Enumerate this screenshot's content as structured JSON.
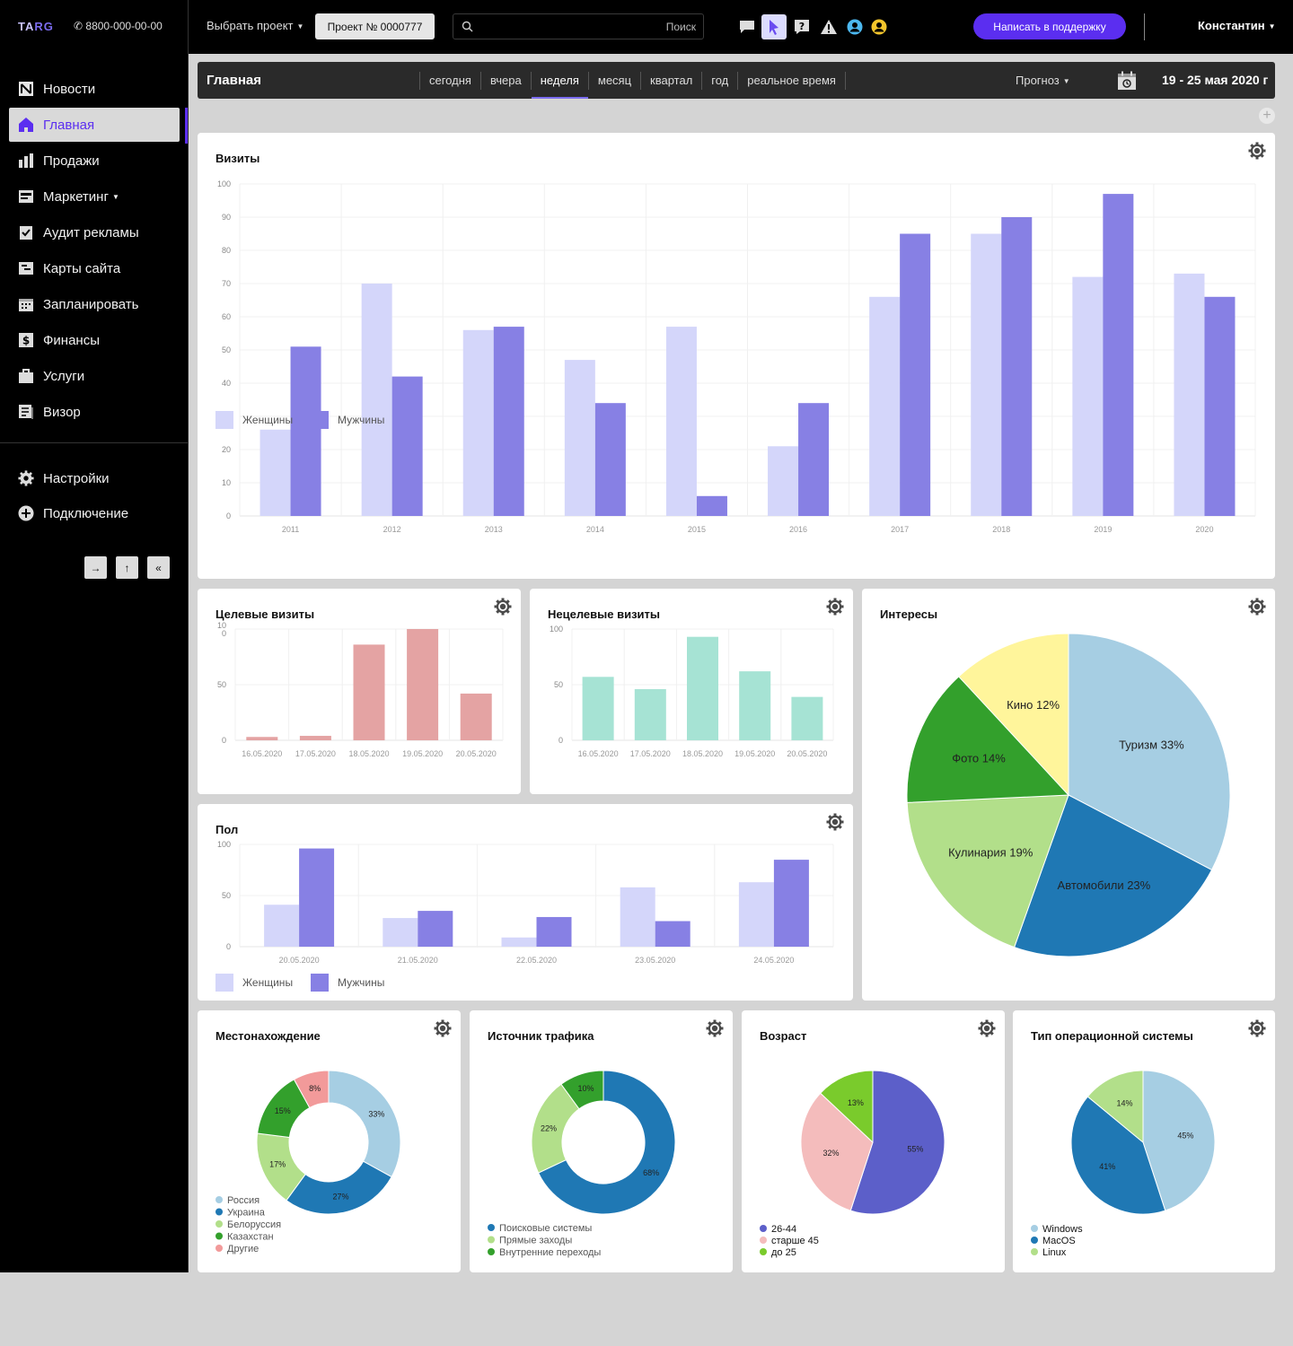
{
  "topbar": {
    "logo_t": "TA",
    "logo_a": "RG",
    "phone": "8800-000-00-00",
    "project_select": "Выбрать проект",
    "project_number": "Проект № 0000777",
    "search_placeholder": "Поиск",
    "support_button": "Написать в поддержку",
    "user_name": "Константин",
    "icons": [
      "chat-icon",
      "cursor-icon",
      "help-icon",
      "warning-icon",
      "user-blue-icon",
      "user-yellow-icon"
    ],
    "accent": "#5b2ef0"
  },
  "sidebar": {
    "items": [
      {
        "label": "Новости",
        "icon": "news-icon"
      },
      {
        "label": "Главная",
        "icon": "home-icon",
        "active": true
      },
      {
        "label": "Продажи",
        "icon": "sales-icon"
      },
      {
        "label": "Маркетинг",
        "icon": "marketing-icon"
      },
      {
        "label": "Аудит рекламы",
        "icon": "audit-icon"
      },
      {
        "label": "Карты сайта",
        "icon": "sitemap-icon"
      },
      {
        "label": "Запланировать",
        "icon": "calendar-icon"
      },
      {
        "label": "Финансы",
        "icon": "finance-icon"
      },
      {
        "label": "Услуги",
        "icon": "services-icon"
      },
      {
        "label": "Визор",
        "icon": "visor-icon"
      }
    ],
    "bottom": [
      {
        "label": "Настройки",
        "icon": "gear-icon"
      },
      {
        "label": "Подключение",
        "icon": "plus-circle-icon"
      }
    ],
    "buttons": [
      "→",
      "↑",
      "«"
    ]
  },
  "subbar": {
    "title": "Главная",
    "tabs": [
      "сегодня",
      "вчера",
      "неделя",
      "месяц",
      "квартал",
      "год",
      "реальное время"
    ],
    "active_tab": "неделя",
    "forecast": "Прогноз",
    "date_range": "19 - 25 мая 2020 г"
  },
  "chart_data": [
    {
      "id": "visits",
      "type": "bar",
      "title": "Визиты",
      "categories": [
        "2011",
        "2012",
        "2013",
        "2014",
        "2015",
        "2016",
        "2017",
        "2018",
        "2019",
        "2020"
      ],
      "series": [
        {
          "name": "Женщины",
          "color": "#d4d6fa",
          "values": [
            26,
            70,
            56,
            47,
            57,
            21,
            66,
            85,
            72,
            73
          ]
        },
        {
          "name": "Мужчины",
          "color": "#8780e4",
          "values": [
            51,
            42,
            57,
            34,
            6,
            34,
            85,
            90,
            97,
            66
          ]
        }
      ],
      "yticks": [
        "0",
        "10",
        "20",
        "30",
        "40",
        "50",
        "60",
        "70",
        "80",
        "90",
        "100"
      ],
      "ylim": [
        0,
        100
      ],
      "grid": true,
      "legend": "bottom-left"
    },
    {
      "id": "target",
      "type": "bar",
      "title": "Целевые визиты",
      "categories": [
        "16.05.2020",
        "17.05.2020",
        "18.05.2020",
        "19.05.2020",
        "20.05.2020"
      ],
      "series": [
        {
          "color": "#e4a3a3",
          "values": [
            3,
            4,
            86,
            100,
            42
          ]
        }
      ],
      "yticks": [
        "0",
        "50",
        "10\n0"
      ],
      "ylim": [
        0,
        100
      ],
      "grid": true
    },
    {
      "id": "nontarget",
      "type": "bar",
      "title": "Нецелевые визиты",
      "categories": [
        "16.05.2020",
        "17.05.2020",
        "18.05.2020",
        "19.05.2020",
        "20.05.2020"
      ],
      "series": [
        {
          "color": "#a6e3d4",
          "values": [
            57,
            46,
            93,
            62,
            39
          ]
        }
      ],
      "yticks": [
        "0",
        "50",
        "100"
      ],
      "ylim": [
        0,
        100
      ],
      "grid": true
    },
    {
      "id": "gender",
      "type": "bar",
      "title": "Пол",
      "categories": [
        "20.05.2020",
        "21.05.2020",
        "22.05.2020",
        "23.05.2020",
        "24.05.2020"
      ],
      "series": [
        {
          "name": "Женщины",
          "color": "#d4d6fa",
          "values": [
            41,
            28,
            9,
            58,
            63
          ]
        },
        {
          "name": "Мужчины",
          "color": "#8780e4",
          "values": [
            96,
            35,
            29,
            25,
            85
          ]
        }
      ],
      "yticks": [
        "0",
        "50",
        "100"
      ],
      "ylim": [
        0,
        100
      ],
      "grid": true,
      "legend": "bottom-left"
    },
    {
      "id": "interests",
      "type": "pie",
      "title": "Интересы",
      "slices": [
        {
          "label": "Туризм 33%",
          "value": 33,
          "color": "#a6cee3"
        },
        {
          "label": "Автомобили 23%",
          "value": 23,
          "color": "#1f78b4"
        },
        {
          "label": "Кулинария 19%",
          "value": 19,
          "color": "#b2df8a"
        },
        {
          "label": "Фото 14%",
          "value": 14,
          "color": "#33a02c"
        },
        {
          "label": "Кино 12%",
          "value": 12,
          "color": "#fff59b"
        }
      ]
    },
    {
      "id": "location",
      "type": "pie",
      "donut": true,
      "title": "Местонахождение",
      "slices": [
        {
          "label": "33%",
          "name": "Россия",
          "value": 33,
          "color": "#a6cee3"
        },
        {
          "label": "27%",
          "name": "Украина",
          "value": 27,
          "color": "#1f78b4"
        },
        {
          "label": "17%",
          "name": "Белоруссия",
          "value": 17,
          "color": "#b2df8a"
        },
        {
          "label": "15%",
          "name": "Казахстан",
          "value": 15,
          "color": "#33a02c"
        },
        {
          "label": "8%",
          "name": "Другие",
          "value": 8,
          "color": "#f29a9a"
        }
      ]
    },
    {
      "id": "traffic",
      "type": "pie",
      "donut": true,
      "title": "Источник трафика",
      "slices": [
        {
          "label": "68%",
          "name": "Поисковые системы",
          "value": 68,
          "color": "#1f78b4"
        },
        {
          "label": "22%",
          "name": "Прямые заходы",
          "value": 22,
          "color": "#b2df8a"
        },
        {
          "label": "10%",
          "name": "Внутренние переходы",
          "value": 10,
          "color": "#33a02c"
        }
      ]
    },
    {
      "id": "age",
      "type": "pie",
      "title": "Возраст",
      "slices": [
        {
          "label": "55%",
          "name": "26-44",
          "value": 55,
          "color": "#5c5fc9"
        },
        {
          "label": "32%",
          "name": "старше 45",
          "value": 32,
          "color": "#f4bcbc"
        },
        {
          "label": "13%",
          "name": "до 25",
          "value": 13,
          "color": "#7acb2c"
        }
      ]
    },
    {
      "id": "os",
      "type": "pie",
      "title": "Тип операционной системы",
      "slices": [
        {
          "label": "45%",
          "name": "Windows",
          "value": 45,
          "color": "#a6cee3"
        },
        {
          "label": "41%",
          "name": "MacOS",
          "value": 41,
          "color": "#1f78b4"
        },
        {
          "label": "14%",
          "name": "Linux",
          "value": 14,
          "color": "#b2df8a"
        }
      ]
    }
  ]
}
